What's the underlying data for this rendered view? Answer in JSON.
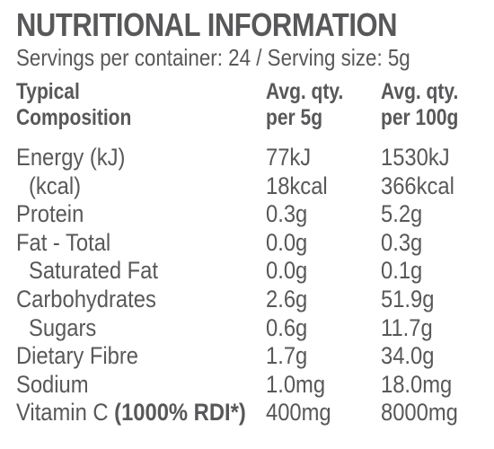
{
  "panel": {
    "title": "NUTRITIONAL INFORMATION",
    "subtitle": "Servings per container: 24 / Serving size: 5g"
  },
  "header": {
    "col0_line1": "Typical",
    "col0_line2": "Composition",
    "col1_line1": "Avg. qty.",
    "col1_line2": "per 5g",
    "col2_line1": "Avg. qty.",
    "col2_line2": "per 100g"
  },
  "rows": [
    {
      "label": "Energy (kJ)",
      "label_bold": "",
      "per_serving": "77kJ",
      "per_100g": "1530kJ"
    },
    {
      "label": "(kcal)",
      "label_bold": "",
      "per_serving": "18kcal",
      "per_100g": "366kcal"
    },
    {
      "label": "Protein",
      "label_bold": "",
      "per_serving": "0.3g",
      "per_100g": "5.2g"
    },
    {
      "label": "Fat - Total",
      "label_bold": "",
      "per_serving": "0.0g",
      "per_100g": "0.3g"
    },
    {
      "label": "Saturated Fat",
      "label_bold": "",
      "per_serving": "0.0g",
      "per_100g": "0.1g"
    },
    {
      "label": "Carbohydrates",
      "label_bold": "",
      "per_serving": "2.6g",
      "per_100g": "51.9g"
    },
    {
      "label": "Sugars",
      "label_bold": "",
      "per_serving": "0.6g",
      "per_100g": "11.7g"
    },
    {
      "label": "Dietary Fibre",
      "label_bold": "",
      "per_serving": "1.7g",
      "per_100g": "34.0g"
    },
    {
      "label": "Sodium",
      "label_bold": "",
      "per_serving": "1.0mg",
      "per_100g": "18.0mg"
    },
    {
      "label": "Vitamin C ",
      "label_bold": "(1000% RDI*)",
      "per_serving": "400mg",
      "per_100g": "8000mg"
    }
  ],
  "colors": {
    "text": "#58585a",
    "background": "#ffffff"
  }
}
